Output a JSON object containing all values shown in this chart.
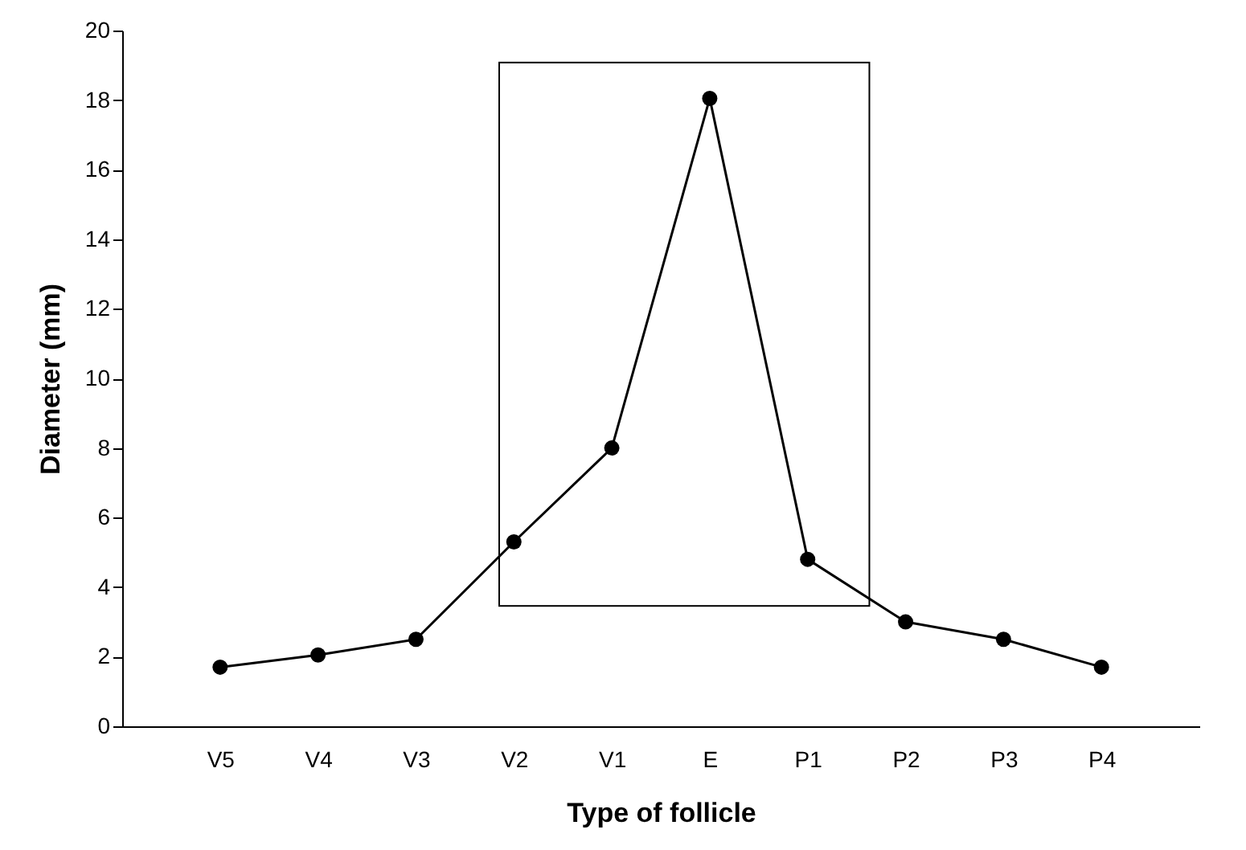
{
  "chart_data": {
    "type": "line",
    "xlabel": "Type of follicle",
    "ylabel": "Diameter (mm)",
    "categories": [
      "V5",
      "V4",
      "V3",
      "V2",
      "V1",
      "E",
      "P1",
      "P2",
      "P3",
      "P4"
    ],
    "values": [
      1.7,
      2.05,
      2.5,
      5.3,
      8.0,
      18.05,
      4.8,
      3.0,
      2.5,
      1.7
    ],
    "color": "#000000",
    "marker": "circle",
    "line_style": "solid",
    "grid": false,
    "ylim": [
      0,
      20
    ],
    "yticks": [
      0,
      2,
      4,
      6,
      8,
      10,
      12,
      14,
      16,
      18,
      20
    ]
  }
}
